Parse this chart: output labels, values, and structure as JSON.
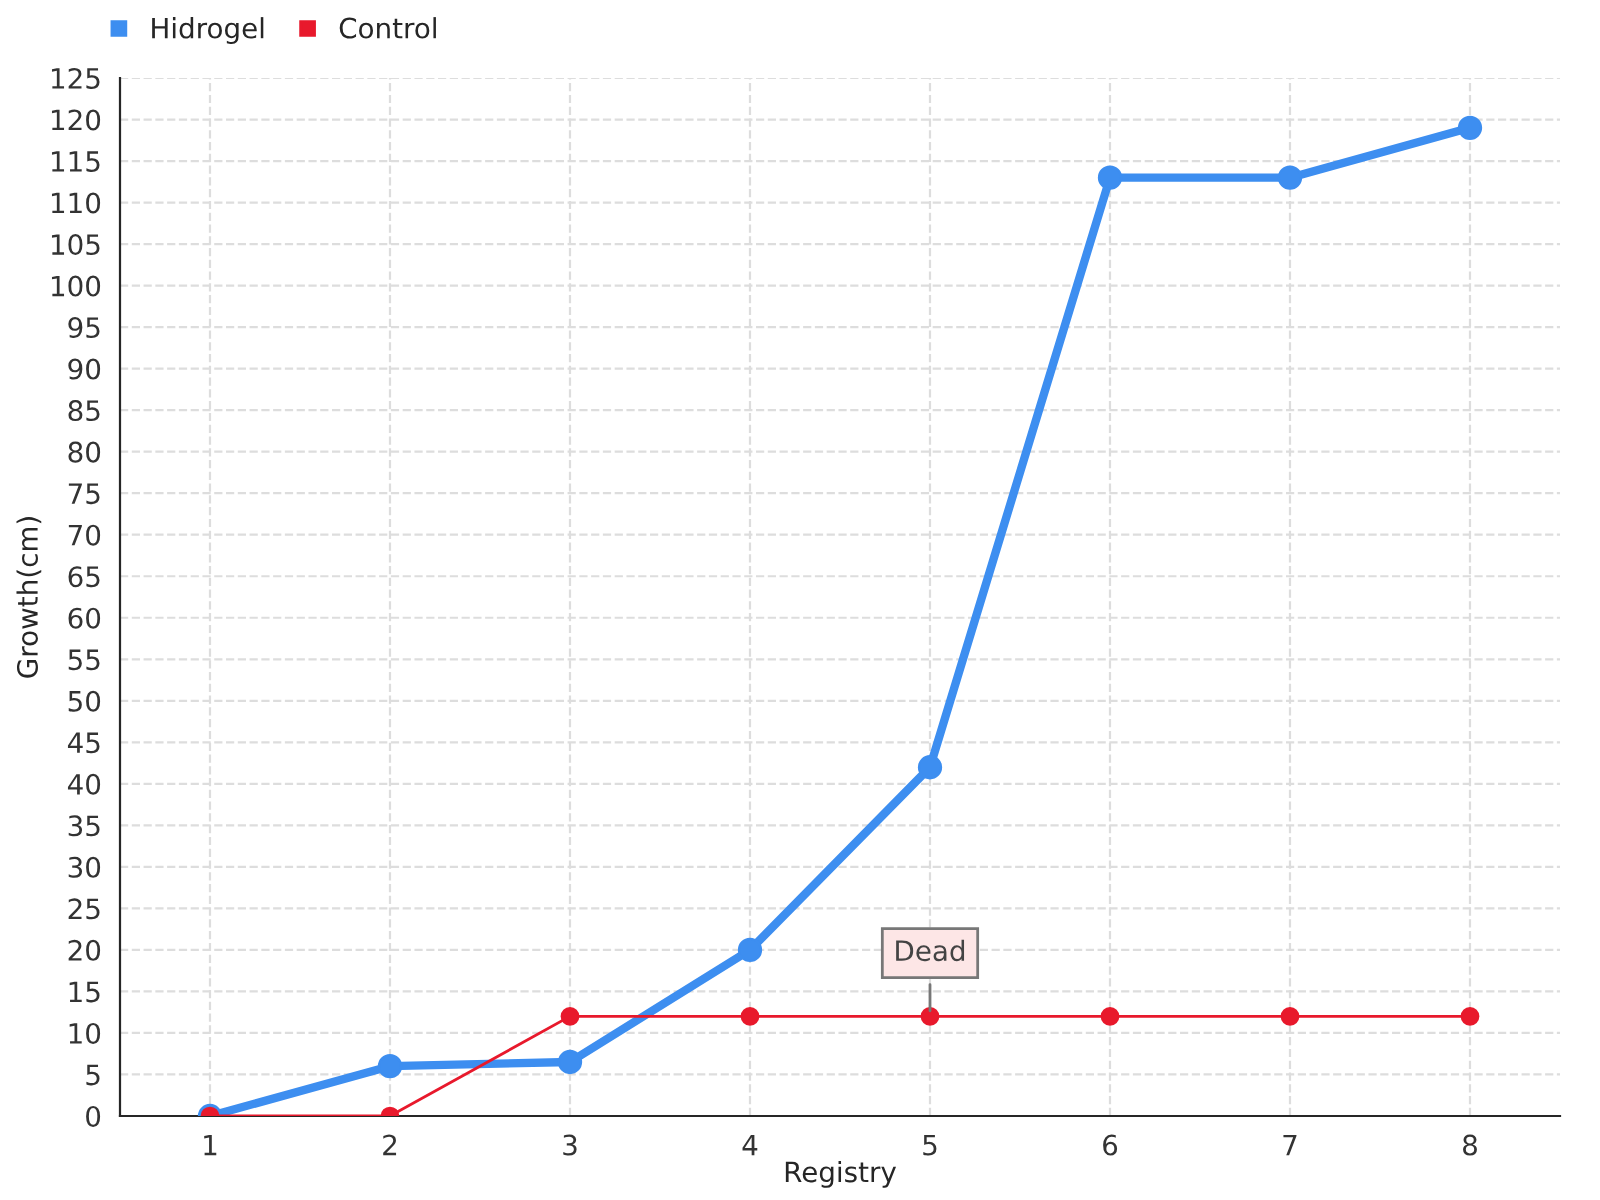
{
  "chart_data": {
    "type": "line",
    "xlabel": "Registry",
    "ylabel": "Growth(cm)",
    "x": [
      1,
      2,
      3,
      4,
      5,
      6,
      7,
      8
    ],
    "series": [
      {
        "name": "Hidrogel",
        "color": "#3d8ef0",
        "values": [
          0,
          6,
          6.5,
          20,
          42,
          113,
          113,
          119
        ]
      },
      {
        "name": "Control",
        "color": "#e8192c",
        "values": [
          0,
          0,
          12,
          12,
          12,
          12,
          12,
          12
        ]
      }
    ],
    "xlim": [
      0.5,
      8.5
    ],
    "xticks": [
      1,
      2,
      3,
      4,
      5,
      6,
      7,
      8
    ],
    "ylim": [
      0,
      125
    ],
    "yticks": [
      0,
      5,
      10,
      15,
      20,
      25,
      30,
      35,
      40,
      45,
      50,
      55,
      60,
      65,
      70,
      75,
      80,
      85,
      90,
      95,
      100,
      105,
      110,
      115,
      120,
      125
    ],
    "annotations": [
      {
        "text": "Dead",
        "x": 5,
        "y": 12
      }
    ],
    "grid": true,
    "legend": "top left",
    "marker": "circle",
    "line_style": "solid"
  }
}
